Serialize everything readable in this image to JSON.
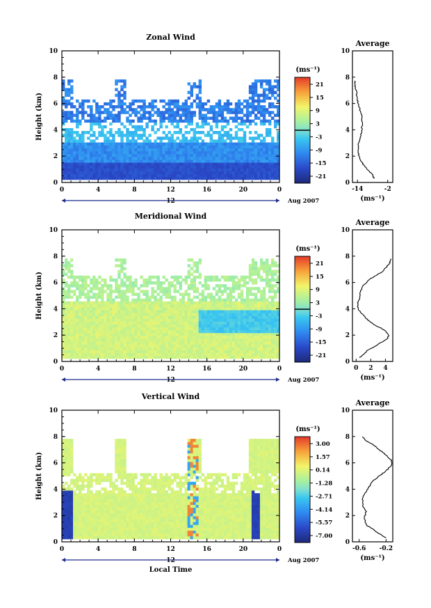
{
  "panels": [
    {
      "id": "zonal",
      "title": "Zonal Wind",
      "ylabel": "Height (km)",
      "ylim": [
        0,
        10
      ],
      "yticks": [
        "0",
        "2",
        "4",
        "6",
        "8",
        "10"
      ],
      "xticks": [
        "0",
        "4",
        "8",
        "12",
        "16",
        "20",
        "0"
      ],
      "date_mid": "12",
      "date_label": "Aug 2007",
      "colorbar": {
        "unit": "(ms⁻¹)",
        "labels": [
          "21",
          "15",
          "9",
          "3",
          "-3",
          "-9",
          "-15",
          "-21"
        ],
        "zero_line": true
      },
      "avg": {
        "title": "Average",
        "xlabel": "(ms⁻¹)",
        "xticks": [
          "-14",
          "-2"
        ],
        "yticks": [
          "0",
          "2",
          "4",
          "6",
          "8",
          "10"
        ]
      },
      "show_local_time": false
    },
    {
      "id": "meridional",
      "title": "Meridional Wind",
      "ylabel": "Height (km)",
      "ylim": [
        0,
        10
      ],
      "yticks": [
        "0",
        "2",
        "4",
        "6",
        "8",
        "10"
      ],
      "xticks": [
        "0",
        "4",
        "8",
        "12",
        "16",
        "20",
        "0"
      ],
      "date_mid": "12",
      "date_label": "Aug 2007",
      "colorbar": {
        "unit": "(ms⁻¹)",
        "labels": [
          "21",
          "15",
          "9",
          "3",
          "-3",
          "-9",
          "-15",
          "-21"
        ],
        "zero_line": true
      },
      "avg": {
        "title": "Average",
        "xlabel": "(ms⁻¹)",
        "xticks": [
          "0",
          "2",
          "4"
        ],
        "yticks": [
          "0",
          "2",
          "4",
          "6",
          "8",
          "10"
        ]
      },
      "show_local_time": false
    },
    {
      "id": "vertical",
      "title": "Vertical Wind",
      "ylabel": "Height (km)",
      "ylim": [
        0,
        10
      ],
      "yticks": [
        "0",
        "2",
        "4",
        "6",
        "8",
        "10"
      ],
      "xticks": [
        "0",
        "4",
        "8",
        "12",
        "16",
        "20",
        "0"
      ],
      "date_mid": "12",
      "date_label": "Aug 2007",
      "colorbar": {
        "unit": "(ms⁻¹)",
        "labels": [
          "3.00",
          "1.57",
          "0.14",
          "-1.28",
          "-2.71",
          "-4.14",
          "-5.57",
          "-7.00"
        ],
        "zero_line": false
      },
      "avg": {
        "title": "Average",
        "xlabel": "(ms⁻¹)",
        "xticks": [
          "-0.6",
          "-0.2"
        ],
        "yticks": [
          "0",
          "2",
          "4",
          "6",
          "8",
          "10"
        ]
      },
      "show_local_time": true,
      "xlabel": "Local Time"
    }
  ],
  "chart_data": [
    {
      "type": "heatmap",
      "title": "Zonal Wind",
      "xlabel": "",
      "ylabel": "Height (km)",
      "x_range_hours": [
        0,
        24
      ],
      "ylim": [
        0,
        10
      ],
      "color_range": [
        -21,
        21
      ],
      "color_unit": "(ms⁻¹)",
      "description_of_values": "Predominantly easterly (negative) winds, strongest (about -15 to -21) near 0.5-1.5 km and around 5-7 km, weaker (-3 to -9) between."
    },
    {
      "type": "line",
      "title": "Average",
      "xlabel": "(ms⁻¹)",
      "ylabel": "Height (km)",
      "xlim": [
        -16,
        0
      ],
      "ylim": [
        0,
        10
      ],
      "series": [
        {
          "x": [
            -7.5,
            -8.0,
            -9.5,
            -11.0,
            -12.5,
            -13.5,
            -13.8,
            -13.5,
            -12.8,
            -12.3,
            -12.0,
            -12.3,
            -13.0,
            -13.8,
            -14.2,
            -14.5,
            -15.0,
            -14.8,
            -15.2
          ],
          "y": [
            0.3,
            0.6,
            0.9,
            1.2,
            1.6,
            2.0,
            2.5,
            3.0,
            3.5,
            4.0,
            4.5,
            5.0,
            5.5,
            6.0,
            6.5,
            7.0,
            7.3,
            7.5,
            7.7
          ]
        }
      ]
    },
    {
      "type": "heatmap",
      "title": "Meridional Wind",
      "xlabel": "",
      "ylabel": "Height (km)",
      "x_range_hours": [
        0,
        24
      ],
      "ylim": [
        0,
        10
      ],
      "color_range": [
        -21,
        21
      ],
      "color_unit": "(ms⁻¹)",
      "description_of_values": "Weak southerly (positive, about 3-9) winds below ~4 km, weak northerly (negative) layer near 3-4 km in the afternoon, positive again above 5 km."
    },
    {
      "type": "line",
      "title": "Average",
      "xlabel": "(ms⁻¹)",
      "ylabel": "Height (km)",
      "xlim": [
        -0.5,
        5
      ],
      "ylim": [
        0,
        10
      ],
      "series": [
        {
          "x": [
            0.5,
            1.5,
            3.0,
            4.2,
            4.5,
            3.8,
            2.5,
            1.5,
            0.8,
            0.3,
            0.2,
            0.5,
            0.6,
            1.0,
            2.0,
            3.5,
            4.2,
            4.6,
            4.8
          ],
          "y": [
            0.3,
            0.8,
            1.3,
            1.7,
            2.0,
            2.4,
            2.8,
            3.2,
            3.6,
            4.0,
            4.4,
            4.8,
            5.3,
            5.8,
            6.3,
            6.8,
            7.2,
            7.5,
            7.8
          ]
        }
      ]
    },
    {
      "type": "heatmap",
      "title": "Vertical Wind",
      "xlabel": "Local Time",
      "ylabel": "Height (km)",
      "x_range_hours": [
        0,
        24
      ],
      "ylim": [
        0,
        10
      ],
      "color_range": [
        -7.0,
        3.0
      ],
      "color_unit": "(ms⁻¹)",
      "description_of_values": "Mostly near zero (about -0.5 to 0.5); strong downward (-7) columns near 0-1 h and 21 h below 4 km, alternating up/down streaks near 14-15 h."
    },
    {
      "type": "line",
      "title": "Average",
      "xlabel": "(ms⁻¹)",
      "ylabel": "Height (km)",
      "xlim": [
        -0.7,
        -0.1
      ],
      "ylim": [
        0,
        10
      ],
      "series": [
        {
          "x": [
            -0.2,
            -0.35,
            -0.5,
            -0.52,
            -0.5,
            -0.55,
            -0.55,
            -0.5,
            -0.45,
            -0.4,
            -0.3,
            -0.2,
            -0.12,
            -0.12,
            -0.2,
            -0.3,
            -0.4,
            -0.5,
            -0.55
          ],
          "y": [
            0.3,
            0.8,
            1.3,
            1.8,
            2.3,
            2.8,
            3.3,
            3.8,
            4.2,
            4.6,
            5.0,
            5.4,
            5.8,
            6.2,
            6.6,
            7.0,
            7.4,
            7.7,
            8.0
          ]
        }
      ]
    }
  ]
}
